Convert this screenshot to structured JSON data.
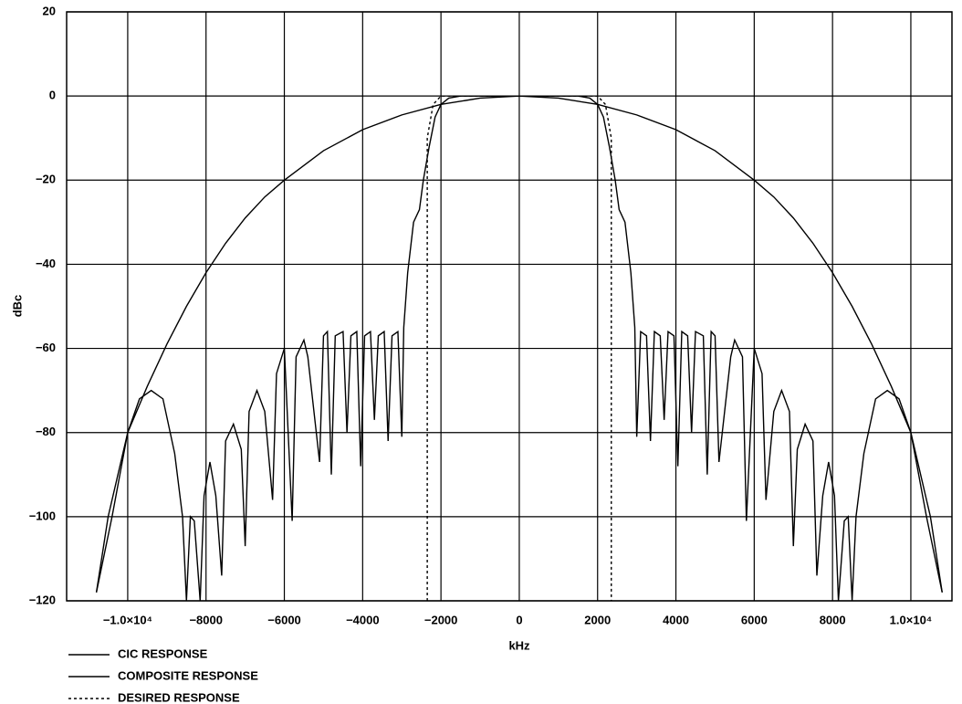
{
  "chart_data": {
    "type": "line",
    "x_label": "kHz",
    "y_label": "dBc",
    "xlim": [
      -11560,
      11050
    ],
    "ylim": [
      -120,
      20
    ],
    "xticks": [
      {
        "value": -10000,
        "label": "−1.0×10⁴"
      },
      {
        "value": -8000,
        "label": "−8000"
      },
      {
        "value": -6000,
        "label": "−6000"
      },
      {
        "value": -4000,
        "label": "−4000"
      },
      {
        "value": -2000,
        "label": "−2000"
      },
      0,
      2000,
      4000,
      6000,
      8000,
      {
        "value": 10000,
        "label": "1.0×10⁴"
      }
    ],
    "yticks": [
      {
        "value": -120,
        "label": "−120"
      },
      {
        "value": -100,
        "label": "−100"
      },
      {
        "value": -80,
        "label": "−80"
      },
      {
        "value": -60,
        "label": "−60"
      },
      {
        "value": -40,
        "label": "−40"
      },
      {
        "value": -20,
        "label": "−20"
      },
      0,
      20
    ],
    "grid": true,
    "legend": "bottom-left",
    "series": [
      {
        "name": "CIC RESPONSE",
        "color": "#000000",
        "line_style": "solid",
        "x": [
          -10800,
          -10500,
          -10000,
          -9500,
          -9000,
          -8500,
          -8000,
          -7500,
          -7000,
          -6500,
          -6000,
          -5000,
          -4000,
          -3000,
          -2000,
          -1000,
          0,
          1000,
          2000,
          3000,
          4000,
          5000,
          6000,
          6500,
          7000,
          7500,
          8000,
          8500,
          9000,
          9500,
          10000,
          10500,
          10800
        ],
        "values": [
          -118,
          -100,
          -80,
          -69,
          -59,
          -50,
          -42,
          -35,
          -29,
          -24,
          -20,
          -13,
          -8,
          -4.5,
          -2,
          -0.5,
          0,
          -0.5,
          -2,
          -4.5,
          -8,
          -13,
          -20,
          -24,
          -29,
          -35,
          -42,
          -50,
          -59,
          -69,
          -80,
          -100,
          -118
        ]
      },
      {
        "name": "COMPOSITE RESPONSE",
        "color": "#000000",
        "line_style": "solid",
        "x": [
          -10800,
          -10400,
          -10000,
          -9700,
          -9400,
          -9100,
          -8800,
          -8600,
          -8500,
          -8400,
          -8300,
          -8150,
          -8050,
          -7900,
          -7750,
          -7600,
          -7500,
          -7300,
          -7100,
          -7000,
          -6900,
          -6700,
          -6500,
          -6300,
          -6200,
          -6000,
          -5800,
          -5700,
          -5500,
          -5400,
          -5100,
          -5000,
          -4900,
          -4800,
          -4700,
          -4500,
          -4400,
          -4300,
          -4150,
          -4050,
          -3950,
          -3800,
          -3700,
          -3600,
          -3450,
          -3350,
          -3250,
          -3100,
          -3000,
          -2950,
          -2850,
          -2700,
          -2550,
          -2450,
          -2300,
          -2150,
          -2000,
          -1800,
          -1500,
          0,
          1500,
          1800,
          2000,
          2150,
          2300,
          2450,
          2550,
          2700,
          2850,
          2950,
          3000,
          3100,
          3250,
          3350,
          3450,
          3600,
          3700,
          3800,
          3950,
          4050,
          4150,
          4300,
          4400,
          4500,
          4700,
          4800,
          4900,
          5000,
          5100,
          5400,
          5500,
          5700,
          5800,
          6000,
          6200,
          6300,
          6500,
          6700,
          6900,
          7000,
          7100,
          7300,
          7500,
          7600,
          7750,
          7900,
          8050,
          8150,
          8300,
          8400,
          8500,
          8600,
          8800,
          9100,
          9400,
          9700,
          10000,
          10400,
          10800
        ],
        "values": [
          -118,
          -100,
          -80,
          -72,
          -70,
          -72,
          -85,
          -100,
          -120,
          -100,
          -101,
          -120,
          -95,
          -87,
          -95,
          -114,
          -82,
          -78,
          -84,
          -107,
          -75,
          -70,
          -75,
          -96,
          -66,
          -60,
          -101,
          -62,
          -58,
          -62,
          -87,
          -57,
          -56,
          -90,
          -57,
          -56,
          -80,
          -57,
          -56,
          -88,
          -57,
          -56,
          -77,
          -57,
          -56,
          -82,
          -57,
          -56,
          -81,
          -55,
          -42,
          -30,
          -27,
          -20,
          -12,
          -5,
          -2,
          -0.5,
          0,
          0,
          0,
          -0.5,
          -2,
          -5,
          -12,
          -20,
          -27,
          -30,
          -42,
          -55,
          -81,
          -56,
          -57,
          -82,
          -56,
          -57,
          -77,
          -56,
          -57,
          -88,
          -56,
          -57,
          -80,
          -56,
          -57,
          -90,
          -56,
          -57,
          -87,
          -62,
          -58,
          -62,
          -101,
          -60,
          -66,
          -96,
          -75,
          -70,
          -75,
          -107,
          -84,
          -78,
          -82,
          -114,
          -95,
          -87,
          -95,
          -120,
          -101,
          -100,
          -120,
          -100,
          -85,
          -72,
          -70,
          -72,
          -80,
          -100,
          -118
        ]
      },
      {
        "name": "DESIRED RESPONSE",
        "color": "#000000",
        "line_style": "dashed",
        "x": [
          -2350,
          -2350,
          -2200,
          -2000,
          2000,
          2200,
          2350,
          2350
        ],
        "values": [
          -120,
          -10,
          -2,
          0,
          0,
          -2,
          -10,
          -120
        ]
      }
    ]
  }
}
